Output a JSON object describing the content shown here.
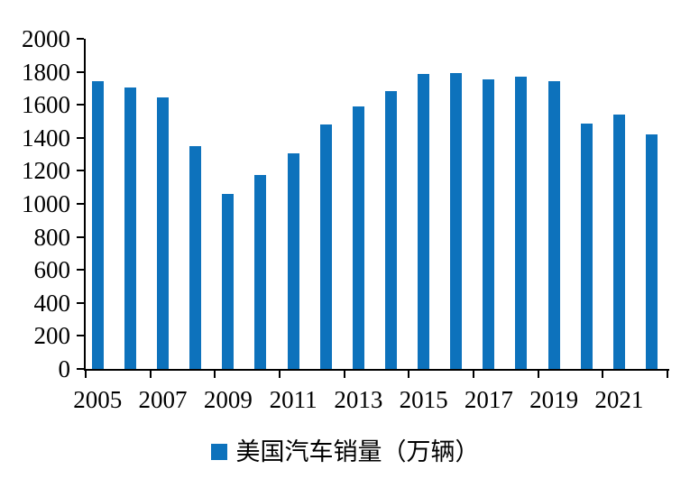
{
  "chart_data": {
    "type": "bar",
    "title": "",
    "xlabel": "",
    "ylabel": "",
    "categories": [
      "2005",
      "2006",
      "2007",
      "2008",
      "2009",
      "2010",
      "2011",
      "2012",
      "2013",
      "2014",
      "2015",
      "2016",
      "2017",
      "2018",
      "2019",
      "2020",
      "2021",
      "2022"
    ],
    "values": [
      1745,
      1705,
      1645,
      1350,
      1060,
      1175,
      1305,
      1480,
      1590,
      1685,
      1785,
      1790,
      1755,
      1770,
      1745,
      1485,
      1540,
      1420
    ],
    "legend_label": "美国汽车销量（万辆）",
    "ylim": [
      0,
      2000
    ],
    "yticks": [
      "0",
      "200",
      "400",
      "600",
      "800",
      "1000",
      "1200",
      "1400",
      "1600",
      "1800",
      "2000"
    ],
    "ytick_values": [
      0,
      200,
      400,
      600,
      800,
      1000,
      1200,
      1400,
      1600,
      1800,
      2000
    ],
    "x_tick_labels": [
      "2005",
      "2007",
      "2009",
      "2011",
      "2013",
      "2015",
      "2017",
      "2019",
      "2021"
    ],
    "grid": false,
    "legend_position": "bottom",
    "bar_color": "#0D72BC",
    "axis_color": "#000000"
  }
}
